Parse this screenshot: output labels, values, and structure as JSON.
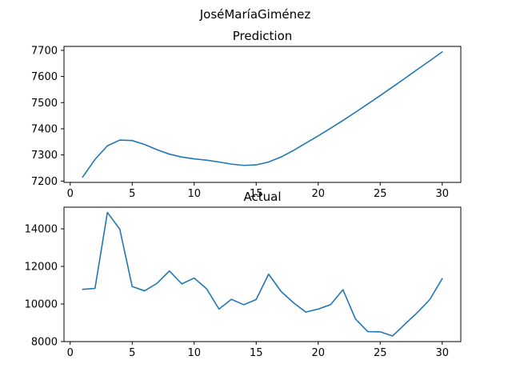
{
  "suptitle": "JoséMaríaGiménez",
  "chart_data": [
    {
      "type": "line",
      "title": "Prediction",
      "xlabel": "",
      "ylabel": "",
      "xlim": [
        -0.5,
        31.5
      ],
      "ylim": [
        7195,
        7715
      ],
      "xticks": [
        0,
        5,
        10,
        15,
        20,
        25,
        30
      ],
      "yticks": [
        7200,
        7300,
        7400,
        7500,
        7600,
        7700
      ],
      "grid": false,
      "series": [
        {
          "color": "#1f77b4",
          "x": [
            1,
            2,
            3,
            4,
            5,
            6,
            7,
            8,
            9,
            10,
            11,
            12,
            13,
            14,
            15,
            16,
            17,
            18,
            19,
            20,
            21,
            22,
            23,
            24,
            25,
            26,
            27,
            28,
            29,
            30
          ],
          "values": [
            7215,
            7283,
            7335,
            7357,
            7355,
            7340,
            7320,
            7303,
            7292,
            7285,
            7280,
            7273,
            7265,
            7260,
            7262,
            7273,
            7292,
            7317,
            7345,
            7373,
            7402,
            7432,
            7463,
            7495,
            7527,
            7560,
            7593,
            7627,
            7660,
            7694
          ]
        }
      ]
    },
    {
      "type": "line",
      "title": "Actual",
      "xlabel": "",
      "ylabel": "",
      "xlim": [
        -0.5,
        31.5
      ],
      "ylim": [
        8000,
        15150
      ],
      "xticks": [
        0,
        5,
        10,
        15,
        20,
        25,
        30
      ],
      "yticks": [
        8000,
        10000,
        12000,
        14000
      ],
      "grid": false,
      "series": [
        {
          "color": "#1f77b4",
          "x": [
            1,
            2,
            3,
            4,
            5,
            6,
            7,
            8,
            9,
            10,
            11,
            12,
            13,
            14,
            15,
            16,
            17,
            18,
            19,
            20,
            21,
            22,
            23,
            24,
            25,
            26,
            27,
            28,
            29,
            30
          ],
          "values": [
            10780,
            10830,
            14870,
            13980,
            10930,
            10700,
            11100,
            11760,
            11070,
            11380,
            10810,
            9730,
            10250,
            9960,
            10240,
            11590,
            10670,
            10070,
            9570,
            9730,
            9970,
            10760,
            9210,
            8530,
            8520,
            8300,
            8930,
            9550,
            10240,
            11350
          ]
        }
      ]
    }
  ]
}
